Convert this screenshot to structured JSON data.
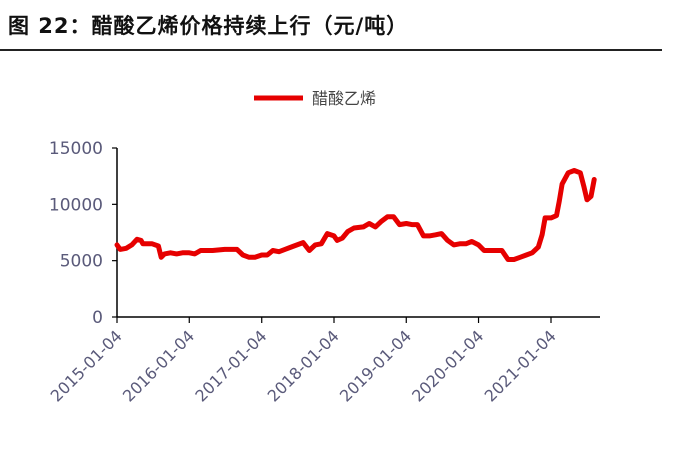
{
  "figure": {
    "title": "图 22：醋酸乙烯价格持续上行（元/吨）"
  },
  "chart_data": {
    "type": "line",
    "title": "",
    "xlabel": "",
    "ylabel": "",
    "ylim": [
      0,
      15000
    ],
    "yticks": [
      0,
      5000,
      10000,
      15000
    ],
    "ytick_labels": [
      "0",
      "5000",
      "10000",
      "15000"
    ],
    "xticks": [
      "2015-01-04",
      "2016-01-04",
      "2017-01-04",
      "2018-01-04",
      "2019-01-04",
      "2020-01-04",
      "2021-01-04"
    ],
    "grid": false,
    "legend_position": "top-center",
    "series": [
      {
        "name": "醋酸乙烯",
        "color": "#e60000",
        "points": [
          [
            "2015-01-04",
            6400
          ],
          [
            "2015-01-20",
            6000
          ],
          [
            "2015-02-20",
            6100
          ],
          [
            "2015-03-20",
            6400
          ],
          [
            "2015-04-15",
            6900
          ],
          [
            "2015-05-05",
            6800
          ],
          [
            "2015-05-15",
            6500
          ],
          [
            "2015-07-01",
            6500
          ],
          [
            "2015-08-01",
            6300
          ],
          [
            "2015-08-15",
            5300
          ],
          [
            "2015-09-01",
            5600
          ],
          [
            "2015-10-01",
            5700
          ],
          [
            "2015-11-01",
            5600
          ],
          [
            "2015-12-01",
            5700
          ],
          [
            "2016-01-04",
            5700
          ],
          [
            "2016-02-01",
            5600
          ],
          [
            "2016-03-01",
            5900
          ],
          [
            "2016-05-01",
            5900
          ],
          [
            "2016-07-01",
            6000
          ],
          [
            "2016-09-01",
            6000
          ],
          [
            "2016-10-01",
            5500
          ],
          [
            "2016-11-01",
            5300
          ],
          [
            "2016-12-01",
            5300
          ],
          [
            "2017-01-04",
            5500
          ],
          [
            "2017-02-01",
            5500
          ],
          [
            "2017-03-01",
            5900
          ],
          [
            "2017-04-01",
            5800
          ],
          [
            "2017-05-01",
            6000
          ],
          [
            "2017-06-01",
            6200
          ],
          [
            "2017-07-01",
            6400
          ],
          [
            "2017-08-01",
            6600
          ],
          [
            "2017-09-01",
            5900
          ],
          [
            "2017-10-01",
            6400
          ],
          [
            "2017-11-01",
            6500
          ],
          [
            "2017-12-01",
            7400
          ],
          [
            "2018-01-04",
            7200
          ],
          [
            "2018-01-20",
            6800
          ],
          [
            "2018-02-15",
            7000
          ],
          [
            "2018-03-15",
            7600
          ],
          [
            "2018-04-15",
            7900
          ],
          [
            "2018-06-01",
            8000
          ],
          [
            "2018-07-01",
            8300
          ],
          [
            "2018-08-01",
            8000
          ],
          [
            "2018-09-01",
            8500
          ],
          [
            "2018-10-01",
            8900
          ],
          [
            "2018-11-01",
            8900
          ],
          [
            "2018-12-01",
            8200
          ],
          [
            "2019-01-04",
            8300
          ],
          [
            "2019-02-01",
            8200
          ],
          [
            "2019-03-01",
            8200
          ],
          [
            "2019-04-01",
            7200
          ],
          [
            "2019-05-01",
            7200
          ],
          [
            "2019-06-01",
            7300
          ],
          [
            "2019-07-01",
            7400
          ],
          [
            "2019-08-01",
            6800
          ],
          [
            "2019-09-01",
            6400
          ],
          [
            "2019-10-01",
            6500
          ],
          [
            "2019-11-01",
            6500
          ],
          [
            "2019-12-01",
            6700
          ],
          [
            "2020-01-04",
            6400
          ],
          [
            "2020-02-01",
            5900
          ],
          [
            "2020-03-01",
            5900
          ],
          [
            "2020-04-01",
            5900
          ],
          [
            "2020-05-01",
            5900
          ],
          [
            "2020-06-01",
            5100
          ],
          [
            "2020-07-01",
            5100
          ],
          [
            "2020-08-01",
            5300
          ],
          [
            "2020-09-01",
            5500
          ],
          [
            "2020-10-01",
            5700
          ],
          [
            "2020-11-01",
            6200
          ],
          [
            "2020-11-20",
            7300
          ],
          [
            "2020-12-05",
            8800
          ],
          [
            "2021-01-04",
            8800
          ],
          [
            "2021-02-01",
            9000
          ],
          [
            "2021-02-15",
            10300
          ],
          [
            "2021-03-01",
            11800
          ],
          [
            "2021-04-01",
            12800
          ],
          [
            "2021-05-01",
            13000
          ],
          [
            "2021-06-01",
            12800
          ],
          [
            "2021-06-20",
            11500
          ],
          [
            "2021-07-05",
            10400
          ],
          [
            "2021-07-25",
            10700
          ],
          [
            "2021-08-10",
            12200
          ]
        ]
      }
    ]
  }
}
